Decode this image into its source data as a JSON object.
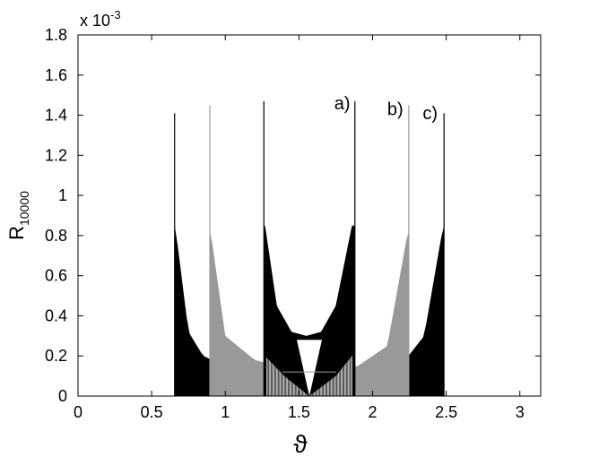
{
  "chart_data": {
    "type": "area",
    "title": "",
    "xlabel": "ϑ",
    "ylabel": {
      "base": "R",
      "subscript": "10000"
    },
    "y_multiplier": {
      "prefix": "x 10",
      "exponent": "-3"
    },
    "xlim": [
      0,
      3.1416
    ],
    "ylim": [
      0,
      1.8
    ],
    "xticks": [
      0,
      0.5,
      1,
      1.5,
      2,
      2.5,
      3
    ],
    "xtick_labels": [
      "0",
      "0.5",
      "1",
      "1.5",
      "2",
      "2.5",
      "3"
    ],
    "yticks": [
      0,
      0.2,
      0.4,
      0.6,
      0.8,
      1.0,
      1.2,
      1.4,
      1.6,
      1.8
    ],
    "ytick_labels": [
      "0",
      "0.2",
      "0.4",
      "0.6",
      "0.8",
      "1",
      "1.2",
      "1.4",
      "1.6",
      "1.8"
    ],
    "grid": false,
    "series": [
      {
        "name": "a)",
        "color": "#000000",
        "range": [
          1.262,
          1.88
        ],
        "envelope_upper": {
          "x": [
            1.27,
            1.35,
            1.45,
            1.55,
            1.65,
            1.75,
            1.86
          ],
          "y": [
            0.85,
            0.45,
            0.32,
            0.3,
            0.32,
            0.45,
            0.85
          ]
        },
        "envelope_lower": {
          "x": [
            1.27,
            1.4,
            1.57,
            1.75,
            1.86
          ],
          "y": [
            0.2,
            0.1,
            0.0,
            0.1,
            0.2
          ]
        },
        "peak": 1.47
      },
      {
        "name": "b)",
        "color": "#999999",
        "range": [
          0.895,
          2.246
        ],
        "envelope_upper": {
          "x": [
            0.9,
            1.0,
            1.2,
            1.5,
            1.57,
            1.9,
            2.1,
            2.24
          ],
          "y": [
            0.82,
            0.3,
            0.18,
            0.125,
            0.12,
            0.15,
            0.25,
            0.82
          ]
        },
        "peak": 1.45
      },
      {
        "name": "c)",
        "color": "#000000",
        "range": [
          0.656,
          2.485
        ],
        "envelope_upper": {
          "x": [
            0.66,
            0.75,
            0.85,
            1.0,
            1.57,
            2.2,
            2.35,
            2.48
          ],
          "y": [
            0.85,
            0.32,
            0.2,
            0.15,
            0.12,
            0.16,
            0.3,
            0.85
          ]
        },
        "peak": 1.41
      }
    ],
    "annotations": [
      {
        "text": "a)",
        "x": 1.74,
        "y": 1.43
      },
      {
        "text": "b)",
        "x": 2.1,
        "y": 1.4
      },
      {
        "text": "c)",
        "x": 2.34,
        "y": 1.38
      }
    ]
  }
}
